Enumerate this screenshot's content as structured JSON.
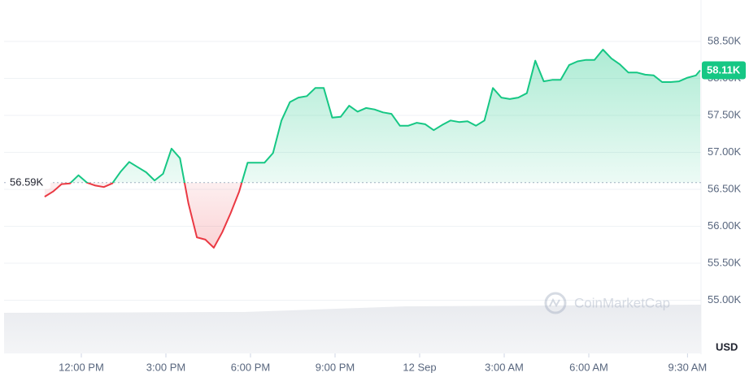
{
  "chart_data": {
    "type": "line",
    "series": [
      {
        "name": "Price",
        "color": "#16c784",
        "below_color": "#ea3943",
        "x": [
          -1.3,
          -1.0,
          -0.7,
          -0.4,
          -0.1,
          0.2,
          0.5,
          0.8,
          1.1,
          1.4,
          1.7,
          2.0,
          2.3,
          2.6,
          2.9,
          3.2,
          3.5,
          3.8,
          4.1,
          4.4,
          4.7,
          5.0,
          5.3,
          5.6,
          5.9,
          6.2,
          6.5,
          6.8,
          7.1,
          7.4,
          7.7,
          8.0,
          8.3,
          8.6,
          8.9,
          9.2,
          9.5,
          9.8,
          10.1,
          10.4,
          10.7,
          11.0,
          11.3,
          11.6,
          11.9,
          12.2,
          12.5,
          12.8,
          13.1,
          13.4,
          13.7,
          14.0,
          14.3,
          14.6,
          14.9,
          15.2,
          15.5,
          15.8,
          16.1,
          16.4,
          16.7,
          17.0,
          17.3,
          17.6,
          17.9,
          18.2,
          18.5,
          18.8,
          19.1,
          19.4,
          19.7,
          20.0,
          20.3,
          20.6,
          20.9,
          21.2,
          21.5,
          21.8,
          21.95
        ],
        "values": [
          56.4,
          56.47,
          56.57,
          56.58,
          56.69,
          56.59,
          56.55,
          56.53,
          56.58,
          56.74,
          56.87,
          56.8,
          56.73,
          56.62,
          56.71,
          57.05,
          56.92,
          56.31,
          55.85,
          55.82,
          55.71,
          55.92,
          56.18,
          56.47,
          56.86,
          56.86,
          56.86,
          56.99,
          57.43,
          57.68,
          57.74,
          57.76,
          57.87,
          57.87,
          57.47,
          57.48,
          57.63,
          57.55,
          57.6,
          57.58,
          57.54,
          57.52,
          57.36,
          57.36,
          57.4,
          57.38,
          57.3,
          57.37,
          57.43,
          57.41,
          57.42,
          57.36,
          57.43,
          57.87,
          57.74,
          57.72,
          57.74,
          57.8,
          58.24,
          57.96,
          57.98,
          57.98,
          58.18,
          58.23,
          58.25,
          58.25,
          58.39,
          58.27,
          58.19,
          58.08,
          58.08,
          58.05,
          58.04,
          57.95,
          57.95,
          57.96,
          58.01,
          58.04,
          58.11
        ]
      }
    ],
    "baseline": {
      "value": 56.59,
      "label": "56.59K"
    },
    "current_price": {
      "value": 58.11,
      "label": "58.11K"
    },
    "xlim": [
      -2.74,
      21.98
    ],
    "xticks": [
      {
        "value": 0,
        "label": "12:00 PM"
      },
      {
        "value": 3,
        "label": "3:00 PM"
      },
      {
        "value": 6,
        "label": "6:00 PM"
      },
      {
        "value": 9,
        "label": "9:00 PM"
      },
      {
        "value": 12,
        "label": "12 Sep"
      },
      {
        "value": 15,
        "label": "3:00 AM"
      },
      {
        "value": 18,
        "label": "6:00 AM"
      },
      {
        "value": 21.5,
        "label": "9:30 AM"
      }
    ],
    "ylim": [
      54.28,
      59.06
    ],
    "yticks": [
      {
        "value": 55,
        "label": "55.00K"
      },
      {
        "value": 55.5,
        "label": "55.50K"
      },
      {
        "value": 56,
        "label": "56.00K"
      },
      {
        "value": 56.5,
        "label": "56.50K"
      },
      {
        "value": 57,
        "label": "57.00K"
      },
      {
        "value": 57.5,
        "label": "57.50K"
      },
      {
        "value": 58,
        "label": "58.00K"
      },
      {
        "value": 58.5,
        "label": "58.50K"
      }
    ],
    "grid": true,
    "currency": "USD",
    "watermark": "CoinMarketCap"
  }
}
